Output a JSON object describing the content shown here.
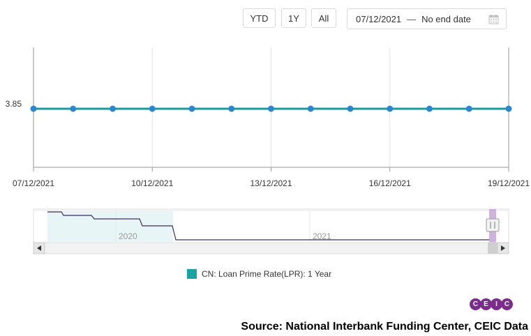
{
  "toolbar": {
    "ytd_label": "YTD",
    "oney_label": "1Y",
    "all_label": "All",
    "start_date": "07/12/2021",
    "separator": "—",
    "end_date": "No end date"
  },
  "chart_data": {
    "type": "line",
    "x": [
      "07/12/2021",
      "08/12/2021",
      "09/12/2021",
      "10/12/2021",
      "11/12/2021",
      "12/12/2021",
      "13/12/2021",
      "14/12/2021",
      "15/12/2021",
      "16/12/2021",
      "17/12/2021",
      "18/12/2021",
      "19/12/2021"
    ],
    "series": [
      {
        "name": "CN: Loan Prime Rate(LPR): 1 Year",
        "values": [
          3.85,
          3.85,
          3.85,
          3.85,
          3.85,
          3.85,
          3.85,
          3.85,
          3.85,
          3.85,
          3.85,
          3.85,
          3.85
        ]
      }
    ],
    "x_tick_labels": [
      "07/12/2021",
      "10/12/2021",
      "13/12/2021",
      "16/12/2021",
      "19/12/2021"
    ],
    "y_tick_labels": [
      "3.85"
    ],
    "color": "#1a9a9a",
    "marker_color": "#2b86d1",
    "grid": true,
    "navigator": {
      "labels": [
        "2020",
        "2021"
      ],
      "line_color": "#3b2a6b"
    }
  },
  "legend": {
    "label": "CN: Loan Prime Rate(LPR): 1 Year",
    "color": "#1aa3a3"
  },
  "branding": {
    "logo_letters": [
      "C",
      "E",
      "I",
      "C"
    ],
    "logo_color": "#7b2d8e"
  },
  "source": "Source: National Interbank Funding Center, CEIC Data"
}
